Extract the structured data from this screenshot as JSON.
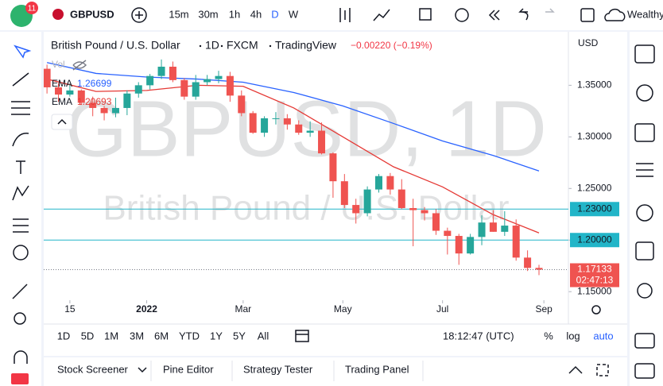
{
  "toolbar": {
    "badge": "11",
    "symbol": "GBPUSD",
    "intervals": [
      "15m",
      "30m",
      "1h",
      "4h",
      "D",
      "W"
    ],
    "account": "Wealthy"
  },
  "range_bar": {
    "ranges": [
      "1D",
      "5D",
      "1M",
      "3M",
      "6M",
      "YTD",
      "1Y",
      "5Y",
      "All"
    ],
    "clock": "18:12:47 (UTC)",
    "options": [
      "%",
      "log",
      "auto"
    ]
  },
  "tabs": [
    "Stock Screener",
    "Pine Editor",
    "Strategy Tester",
    "Trading Panel"
  ],
  "chart_data": {
    "type": "candlestick",
    "symbol": "British Pound / U.S. Dollar",
    "interval": "1D",
    "exchange": "FXCM",
    "source": "TradingView",
    "change_label": "−0.00220 (−0.19%)",
    "currency": "USD",
    "watermark": "GBPUSD, 1D",
    "volume_label": "Vol",
    "countdown": "02:47:13",
    "up_color": "#26a69a",
    "down_color": "#ef5350",
    "x": [
      "2021-11-01",
      "2021-11-08",
      "2021-11-15",
      "2021-11-22",
      "2021-11-29",
      "2021-12-06",
      "2021-12-13",
      "2021-12-20",
      "2021-12-27",
      "2022-01-03",
      "2022-01-10",
      "2022-01-17",
      "2022-01-24",
      "2022-01-31",
      "2022-02-07",
      "2022-02-14",
      "2022-02-21",
      "2022-02-28",
      "2022-03-07",
      "2022-03-14",
      "2022-03-21",
      "2022-03-28",
      "2022-04-04",
      "2022-04-11",
      "2022-04-18",
      "2022-04-25",
      "2022-05-02",
      "2022-05-09",
      "2022-05-16",
      "2022-05-23",
      "2022-05-30",
      "2022-06-06",
      "2022-06-13",
      "2022-06-20",
      "2022-06-27",
      "2022-07-04",
      "2022-07-11",
      "2022-07-18",
      "2022-07-25",
      "2022-08-01",
      "2022-08-08",
      "2022-08-15",
      "2022-08-22",
      "2022-08-29"
    ],
    "open": [
      1.366,
      1.348,
      1.341,
      1.345,
      1.333,
      1.328,
      1.323,
      1.328,
      1.342,
      1.35,
      1.359,
      1.368,
      1.355,
      1.339,
      1.353,
      1.356,
      1.359,
      1.34,
      1.323,
      1.304,
      1.318,
      1.318,
      1.312,
      1.304,
      1.306,
      1.284,
      1.257,
      1.234,
      1.226,
      1.249,
      1.262,
      1.249,
      1.231,
      1.229,
      1.226,
      1.209,
      1.204,
      1.187,
      1.203,
      1.217,
      1.208,
      1.214,
      1.183,
      1.173
    ],
    "high": [
      1.37,
      1.352,
      1.351,
      1.346,
      1.339,
      1.33,
      1.338,
      1.345,
      1.353,
      1.361,
      1.375,
      1.373,
      1.357,
      1.36,
      1.36,
      1.364,
      1.363,
      1.345,
      1.325,
      1.32,
      1.324,
      1.322,
      1.316,
      1.315,
      1.314,
      1.285,
      1.264,
      1.24,
      1.252,
      1.264,
      1.265,
      1.259,
      1.24,
      1.232,
      1.23,
      1.212,
      1.206,
      1.206,
      1.224,
      1.229,
      1.228,
      1.22,
      1.19,
      1.176
    ],
    "low": [
      1.342,
      1.334,
      1.339,
      1.331,
      1.32,
      1.316,
      1.319,
      1.321,
      1.338,
      1.346,
      1.356,
      1.353,
      1.336,
      1.336,
      1.35,
      1.352,
      1.334,
      1.32,
      1.303,
      1.3,
      1.312,
      1.307,
      1.302,
      1.3,
      1.283,
      1.241,
      1.231,
      1.216,
      1.223,
      1.246,
      1.244,
      1.23,
      1.194,
      1.219,
      1.205,
      1.186,
      1.176,
      1.186,
      1.195,
      1.208,
      1.204,
      1.18,
      1.17,
      1.166
    ],
    "close": [
      1.348,
      1.341,
      1.345,
      1.333,
      1.328,
      1.323,
      1.328,
      1.342,
      1.35,
      1.359,
      1.368,
      1.355,
      1.339,
      1.353,
      1.356,
      1.359,
      1.34,
      1.323,
      1.304,
      1.318,
      1.318,
      1.312,
      1.304,
      1.306,
      1.284,
      1.257,
      1.234,
      1.226,
      1.249,
      1.262,
      1.249,
      1.231,
      1.229,
      1.226,
      1.209,
      1.204,
      1.187,
      1.203,
      1.217,
      1.208,
      1.214,
      1.183,
      1.173,
      1.17133
    ],
    "series": [
      {
        "name": "EMA",
        "color": "#2962ff",
        "x": [
          "2021-11-01",
          "2021-12-01",
          "2022-01-01",
          "2022-02-01",
          "2022-03-01",
          "2022-04-01",
          "2022-05-01",
          "2022-06-01",
          "2022-07-01",
          "2022-08-01",
          "2022-08-29"
        ],
        "values": [
          1.372,
          1.3615,
          1.358,
          1.356,
          1.353,
          1.343,
          1.33,
          1.313,
          1.296,
          1.282,
          1.26699
        ]
      },
      {
        "name": "EMA",
        "color": "#e53935",
        "x": [
          "2021-11-01",
          "2021-12-01",
          "2022-01-01",
          "2022-02-01",
          "2022-03-01",
          "2022-04-01",
          "2022-05-01",
          "2022-06-01",
          "2022-07-01",
          "2022-08-01",
          "2022-08-29"
        ],
        "values": [
          1.356,
          1.344,
          1.345,
          1.35,
          1.349,
          1.328,
          1.3,
          1.271,
          1.2515,
          1.2246,
          1.20693
        ]
      }
    ],
    "hlines": [
      {
        "value": 1.23,
        "label": "1.23000"
      },
      {
        "value": 1.2,
        "label": "1.20000"
      }
    ],
    "hline_color": "#22b5c8",
    "xlim": [
      "2021-10-30",
      "2022-09-16"
    ],
    "xticks": [
      {
        "value": "2021-11-15",
        "label": "15"
      },
      {
        "value": "2022-01-01",
        "label": "2022"
      },
      {
        "value": "2022-03-01",
        "label": "Mar"
      },
      {
        "value": "2022-05-01",
        "label": "May"
      },
      {
        "value": "2022-07-01",
        "label": "Jul"
      },
      {
        "value": "2022-09-01",
        "label": "Sep"
      }
    ],
    "ylim": [
      1.144,
      1.398
    ],
    "yticks": [
      {
        "value": 1.15,
        "label": "1.15000"
      },
      {
        "value": 1.2,
        "label": "1.20000"
      },
      {
        "value": 1.25,
        "label": "1.25000"
      },
      {
        "value": 1.3,
        "label": "1.30000"
      },
      {
        "value": 1.35,
        "label": "1.35000"
      }
    ]
  }
}
